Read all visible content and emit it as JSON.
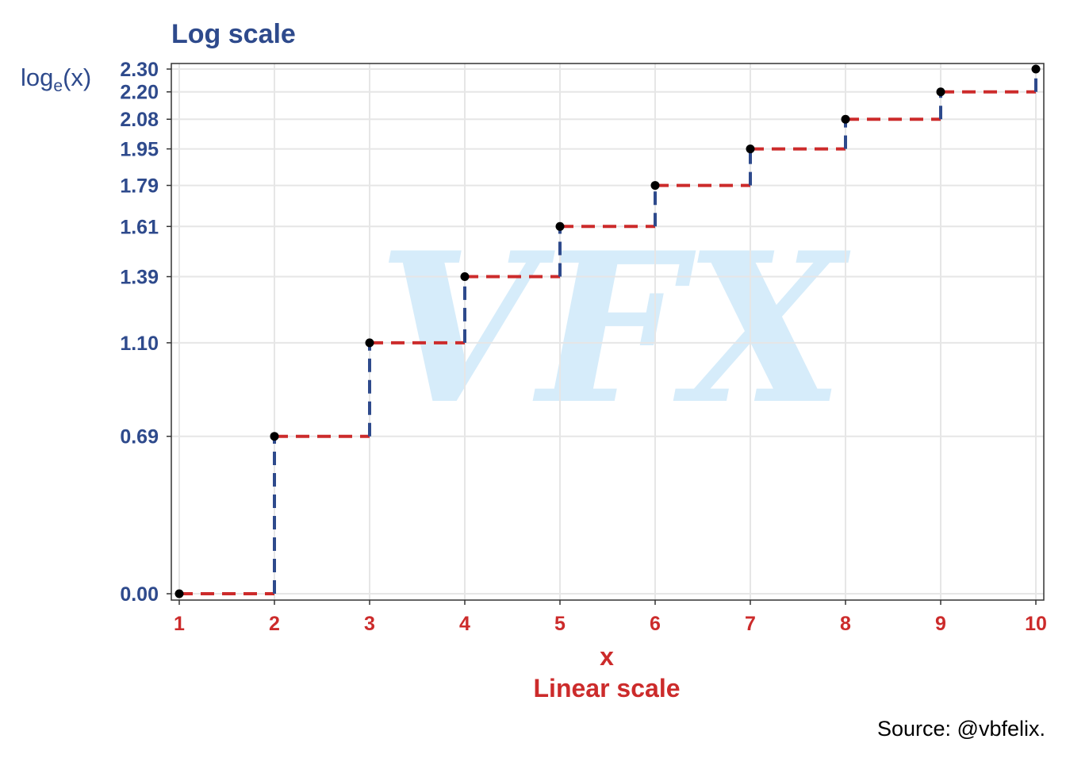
{
  "title": "Log scale",
  "ylabel": {
    "main": "log",
    "sub": "e",
    "tail": "(x)"
  },
  "xlabel_line1": "x",
  "xlabel_line2": "Linear scale",
  "source": "Source: @vbfelix.",
  "watermark": "VFX",
  "colors": {
    "blue": "#2E4A8C",
    "red": "#CC2B2B",
    "grid": "#E6E6E6",
    "point": "#000000",
    "watermark": "#D6ECFA"
  },
  "chart_data": {
    "type": "line",
    "x": [
      1,
      2,
      3,
      4,
      5,
      6,
      7,
      8,
      9,
      10
    ],
    "y": [
      0.0,
      0.69,
      1.1,
      1.39,
      1.61,
      1.79,
      1.95,
      2.08,
      2.2,
      2.3
    ],
    "y_tick_labels": [
      "0.00",
      "0.69",
      "1.10",
      "1.39",
      "1.61",
      "1.79",
      "1.95",
      "2.08",
      "2.20",
      "2.30"
    ],
    "x_tick_labels": [
      "1",
      "2",
      "3",
      "4",
      "5",
      "6",
      "7",
      "8",
      "9",
      "10"
    ],
    "xlim": [
      1,
      10
    ],
    "ylim": [
      0,
      2.3
    ],
    "grid": true,
    "step_style": "horizontal red dashed, vertical blue dashed"
  }
}
